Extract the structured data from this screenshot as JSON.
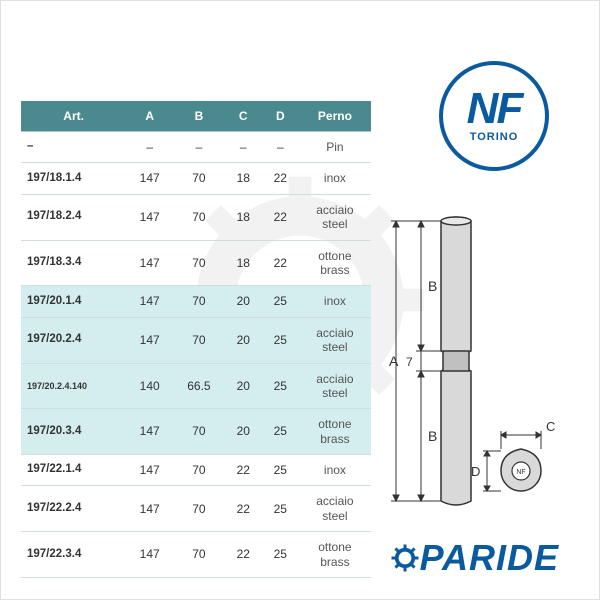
{
  "colors": {
    "header_bg": "#4a8a8f",
    "header_text": "#ffffff",
    "row_border": "#d0dcdd",
    "highlight_bg": "#d4eef0",
    "brand_blue": "#0a5aa0",
    "diagram_fill": "#d9d9d9",
    "diagram_stroke": "#333333"
  },
  "table": {
    "columns": [
      "Art.",
      "A",
      "B",
      "C",
      "D",
      "Perno"
    ],
    "rows": [
      {
        "cells": [
          "–",
          "–",
          "–",
          "–",
          "–",
          "Pin"
        ],
        "highlight": false
      },
      {
        "cells": [
          "197/18.1.4",
          "147",
          "70",
          "18",
          "22",
          "inox"
        ],
        "highlight": false
      },
      {
        "cells": [
          "197/18.2.4",
          "147",
          "70",
          "18",
          "22",
          "acciaio\nsteel"
        ],
        "highlight": false
      },
      {
        "cells": [
          "197/18.3.4",
          "147",
          "70",
          "18",
          "22",
          "ottone\nbrass"
        ],
        "highlight": false
      },
      {
        "cells": [
          "197/20.1.4",
          "147",
          "70",
          "20",
          "25",
          "inox"
        ],
        "highlight": true
      },
      {
        "cells": [
          "197/20.2.4",
          "147",
          "70",
          "20",
          "25",
          "acciaio\nsteel"
        ],
        "highlight": true
      },
      {
        "cells": [
          "197/20.2.4.140",
          "140",
          "66.5",
          "20",
          "25",
          "acciaio\nsteel"
        ],
        "highlight": true,
        "small": true
      },
      {
        "cells": [
          "197/20.3.4",
          "147",
          "70",
          "20",
          "25",
          "ottone\nbrass"
        ],
        "highlight": true
      },
      {
        "cells": [
          "197/22.1.4",
          "147",
          "70",
          "22",
          "25",
          "inox"
        ],
        "highlight": false
      },
      {
        "cells": [
          "197/22.2.4",
          "147",
          "70",
          "22",
          "25",
          "acciaio\nsteel"
        ],
        "highlight": false
      },
      {
        "cells": [
          "197/22.3.4",
          "147",
          "70",
          "22",
          "25",
          "ottone\nbrass"
        ],
        "highlight": false
      }
    ]
  },
  "logo": {
    "main": "NF",
    "sub": "TORINO"
  },
  "diagram_labels": {
    "A": "A",
    "B": "B",
    "C": "C",
    "D": "D",
    "seven": "7"
  },
  "brand": "PARIDE"
}
